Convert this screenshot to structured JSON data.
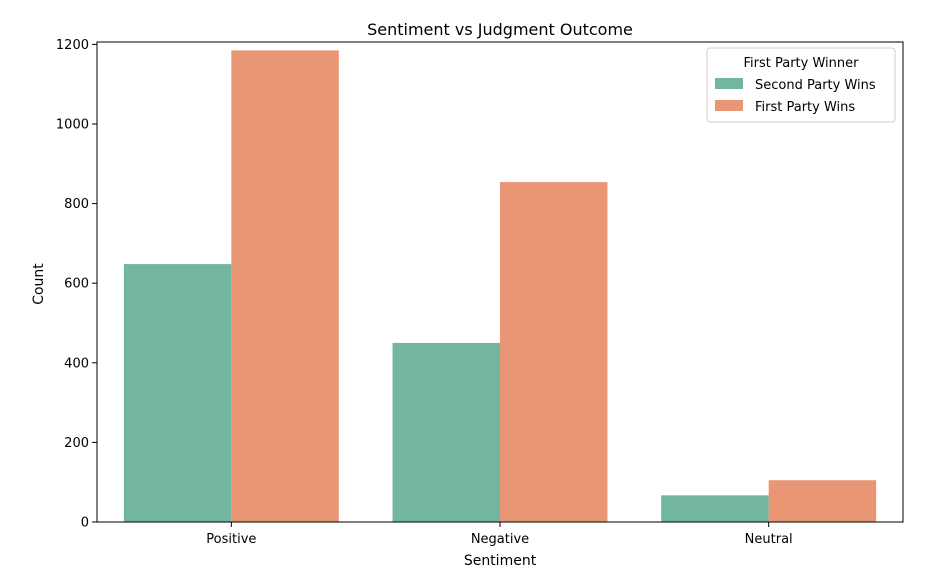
{
  "chart_data": {
    "type": "bar",
    "title": "Sentiment vs Judgment Outcome",
    "xlabel": "Sentiment",
    "ylabel": "Count",
    "categories": [
      "Positive",
      "Negative",
      "Neutral"
    ],
    "series": [
      {
        "name": "Second Party Wins",
        "values": [
          648,
          450,
          67
        ],
        "color": "#72b6a1"
      },
      {
        "name": "First Party Wins",
        "values": [
          1185,
          854,
          105
        ],
        "color": "#e99675"
      }
    ],
    "ylim": [
      0,
      1206
    ],
    "yticks": [
      0,
      200,
      400,
      600,
      800,
      1000,
      1200
    ],
    "grid": false,
    "legend": {
      "title": "First Party Winner",
      "placement": "top-right"
    }
  }
}
